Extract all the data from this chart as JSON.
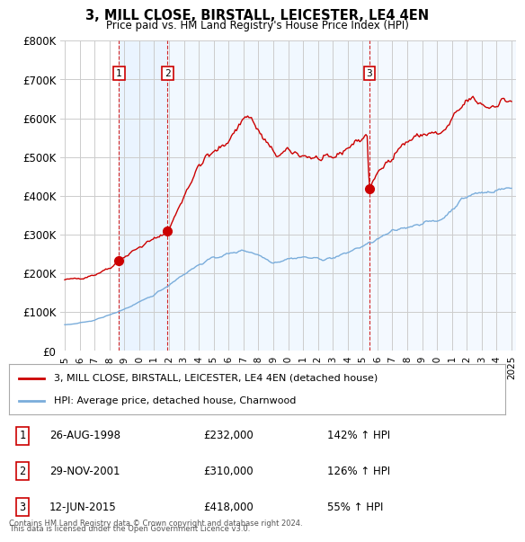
{
  "title": "3, MILL CLOSE, BIRSTALL, LEICESTER, LE4 4EN",
  "subtitle": "Price paid vs. HM Land Registry's House Price Index (HPI)",
  "ylim": [
    0,
    800000
  ],
  "yticks": [
    0,
    100000,
    200000,
    300000,
    400000,
    500000,
    600000,
    700000,
    800000
  ],
  "ytick_labels": [
    "£0",
    "£100K",
    "£200K",
    "£300K",
    "£400K",
    "£500K",
    "£600K",
    "£700K",
    "£800K"
  ],
  "xlim_start": 1994.7,
  "xlim_end": 2025.3,
  "sale_dates": [
    1998.647,
    2001.912,
    2015.442
  ],
  "sale_prices": [
    232000,
    310000,
    418000
  ],
  "sale_labels": [
    "1",
    "2",
    "3"
  ],
  "legend_line1": "3, MILL CLOSE, BIRSTALL, LEICESTER, LE4 4EN (detached house)",
  "legend_line2": "HPI: Average price, detached house, Charnwood",
  "footer1": "Contains HM Land Registry data © Crown copyright and database right 2024.",
  "footer2": "This data is licensed under the Open Government Licence v3.0.",
  "red_color": "#cc0000",
  "blue_color": "#7aaddb",
  "shade_color": "#ddeeff",
  "background_color": "#ffffff",
  "grid_color": "#cccccc",
  "table_data": [
    [
      "1",
      "26-AUG-1998",
      "£232,000",
      "142% ↑ HPI"
    ],
    [
      "2",
      "29-NOV-2001",
      "£310,000",
      "126% ↑ HPI"
    ],
    [
      "3",
      "12-JUN-2015",
      "£418,000",
      "55% ↑ HPI"
    ]
  ]
}
